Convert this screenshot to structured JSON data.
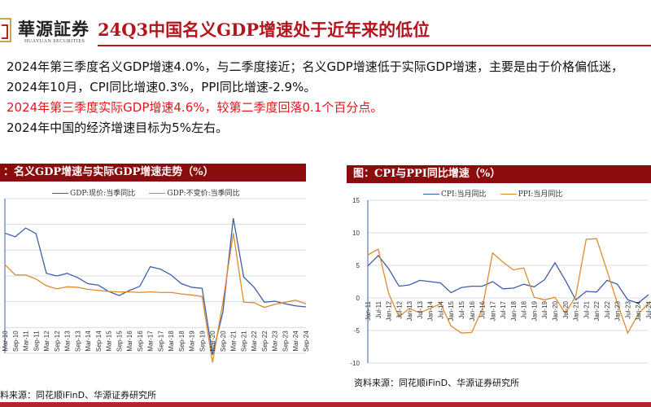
{
  "header": {
    "logo_cn": "華源証券",
    "logo_en": "HUAYUAN SECURITIES",
    "title": "24Q3中国名义GDP增速处于近年来的低位"
  },
  "body": {
    "line1": "2024年第三季度名义GDP增速4.0%，与二季度接近；名义GDP增速低于实际GDP增速，主要是由于价格偏低迷，2024年10月，CPI同比增速0.3%，PPI同比增速-2.9%。",
    "line2": "2024年第三季度实际GDP增速4.6%，较第二季度回落0.1个百分点。",
    "line3": "2024年中国的经济增速目标为5%左右。"
  },
  "left_panel": {
    "heading": "：名义GDP增速与实际GDP增速走势（%）",
    "legend": [
      "GDP:现价:当季同比",
      "GDP:不变价:当季同比"
    ],
    "source": "料来源：同花顺iFinD、华源证券研究所"
  },
  "right_panel": {
    "heading": "图：CPI与PPI同比增速（%）",
    "legend": [
      "CPI:当月同比",
      "PPI:当月同比"
    ],
    "source": "资料来源：同花顺iFinD、华源证券研究所"
  },
  "colors": {
    "brand_red": "#b4141c",
    "panel_header": "#8b0c0c",
    "series_blue": "#3d5fa8",
    "series_orange": "#e08a2c",
    "highlight_text": "#e0161b"
  },
  "chart_data": [
    {
      "type": "line",
      "title": "名义GDP增速与实际GDP增速走势（%）",
      "xlabel": "",
      "ylabel": "%",
      "ylim": [
        -5,
        25
      ],
      "grid": true,
      "legend_position": "top",
      "categories": [
        "Mar-10",
        "Sep-10",
        "Mar-11",
        "Sep-11",
        "Mar-12",
        "Sep-12",
        "Mar-13",
        "Sep-13",
        "Mar-14",
        "Sep-14",
        "Mar-15",
        "Sep-15",
        "Mar-16",
        "Sep-16",
        "Mar-17",
        "Sep-17",
        "Mar-18",
        "Sep-18",
        "Mar-19",
        "Sep-19",
        "Mar-20",
        "Sep-20",
        "Mar-21",
        "Sep-21",
        "Mar-22",
        "Sep-22",
        "Mar-23",
        "Sep-23",
        "Mar-24",
        "Sep-24"
      ],
      "series": [
        {
          "name": "GDP:现价:当季同比",
          "values": [
            18.3,
            17.6,
            19.3,
            18.2,
            10.5,
            10.0,
            10.5,
            9.7,
            8.5,
            8.2,
            7.0,
            6.2,
            7.2,
            8.0,
            11.8,
            11.3,
            10.2,
            8.5,
            7.8,
            7.6,
            -5.3,
            3.0,
            21.2,
            9.8,
            7.8,
            4.9,
            5.1,
            4.6,
            4.2,
            4.0
          ]
        },
        {
          "name": "GDP:不变价:当季同比",
          "values": [
            12.2,
            10.2,
            10.2,
            9.4,
            8.1,
            7.5,
            7.9,
            7.8,
            7.4,
            7.2,
            7.0,
            6.9,
            6.9,
            6.8,
            6.9,
            6.8,
            6.8,
            6.5,
            6.3,
            6.0,
            -6.8,
            4.9,
            18.3,
            4.9,
            4.8,
            3.9,
            4.5,
            4.9,
            5.3,
            4.6
          ]
        }
      ]
    },
    {
      "type": "line",
      "title": "CPI与PPI同比增速（%）",
      "xlabel": "",
      "ylabel": "%",
      "ylim": [
        -10,
        15
      ],
      "yticks": [
        15,
        10,
        5,
        0,
        -5,
        -10
      ],
      "grid": true,
      "legend_position": "top",
      "categories": [
        "Jan-11",
        "Jul-11",
        "Jan-12",
        "Jul-12",
        "Jan-13",
        "Jul-13",
        "Jan-14",
        "Jul-14",
        "Jan-15",
        "Jul-15",
        "Jan-16",
        "Jul-16",
        "Jan-17",
        "Jul-17",
        "Jan-18",
        "Jul-18",
        "Jan-19",
        "Jul-19",
        "Jan-20",
        "Jul-20",
        "Jan-21",
        "Jul-21",
        "Jan-22",
        "Jul-22",
        "Jan-23",
        "Jul-23",
        "Jan-24",
        "Jul-24"
      ],
      "series": [
        {
          "name": "CPI:当月同比",
          "values": [
            4.9,
            6.5,
            4.5,
            1.8,
            2.0,
            2.7,
            2.5,
            2.3,
            0.8,
            1.6,
            1.8,
            1.8,
            2.5,
            1.4,
            1.5,
            2.1,
            1.7,
            2.8,
            5.4,
            2.7,
            -0.3,
            1.0,
            0.9,
            2.7,
            2.1,
            -0.3,
            -0.8,
            0.5
          ]
        },
        {
          "name": "PPI:当月同比",
          "values": [
            6.6,
            7.5,
            0.7,
            -2.9,
            -1.6,
            -2.3,
            -1.6,
            -0.9,
            -4.3,
            -5.4,
            -5.3,
            -1.7,
            6.9,
            5.5,
            4.3,
            4.6,
            0.1,
            -0.3,
            0.1,
            -2.4,
            0.3,
            9.0,
            9.1,
            4.2,
            -0.8,
            -5.4,
            -2.5,
            -0.8
          ]
        }
      ]
    }
  ]
}
